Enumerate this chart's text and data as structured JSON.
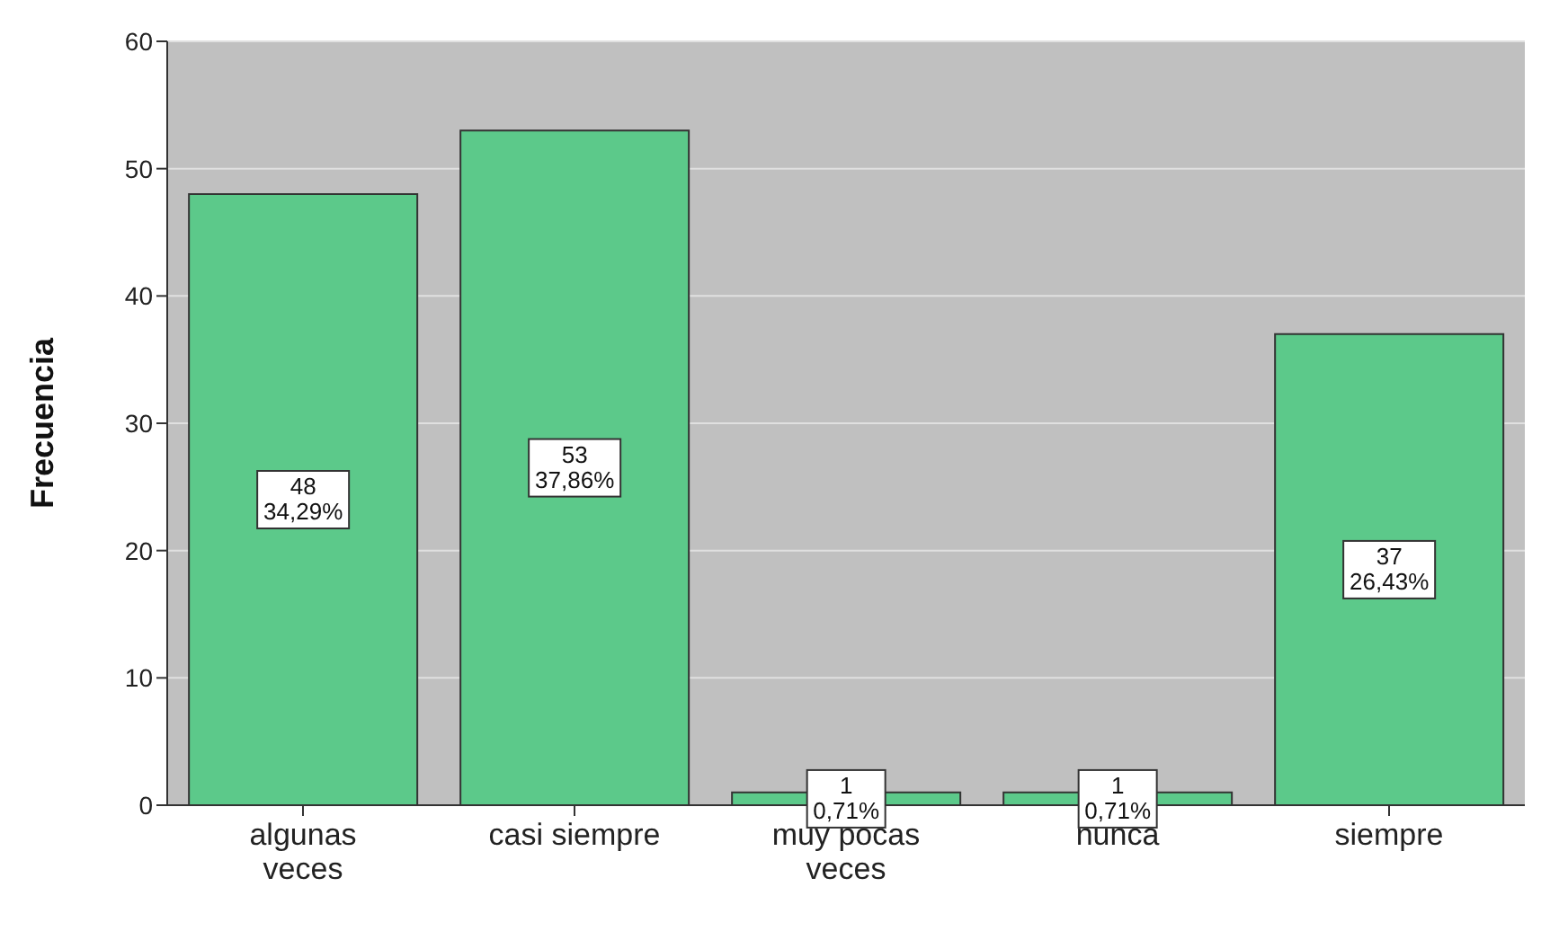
{
  "chart_data": {
    "type": "bar",
    "ylabel": "Frecuencia",
    "categories": [
      "algunas veces",
      "casi siempre",
      "muy pocas veces",
      "nunca",
      "siempre"
    ],
    "values": [
      48,
      53,
      1,
      1,
      37
    ],
    "value_labels": [
      "48\n34,29%",
      "53\n37,86%",
      "1\n0,71%",
      "1\n0,71%",
      "37\n26,43%"
    ],
    "color": "#5cc98a",
    "ylim": [
      0,
      60
    ],
    "yticks": [
      0,
      10,
      20,
      30,
      40,
      50,
      60
    ],
    "grid": "y"
  }
}
